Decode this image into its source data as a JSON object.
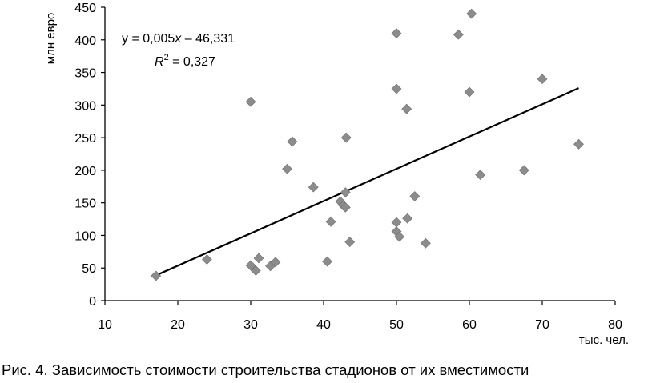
{
  "chart_data": {
    "type": "scatter",
    "title": "",
    "xlabel": "тыс. чел.",
    "ylabel": "млн евро",
    "xlim": [
      10,
      80
    ],
    "ylim": [
      0,
      450
    ],
    "x_ticks": [
      "10",
      "20",
      "30",
      "40",
      "50",
      "60",
      "70",
      "80"
    ],
    "y_ticks": [
      "0",
      "50",
      "100",
      "150",
      "200",
      "250",
      "300",
      "350",
      "400",
      "450"
    ],
    "grid": false,
    "legend": "none",
    "marker": "diamond",
    "marker_color": "#8c8c8c",
    "trendline": {
      "slope": 0.005,
      "intercept": -46.331,
      "x_range": [
        17,
        75
      ],
      "y_range": [
        38.7,
        326.0
      ],
      "equation_prefix": "y  = 0,005",
      "equation_var": "x",
      "equation_suffix": "  – 46,331",
      "r2_prefix": "R",
      "r2_sup": "2",
      "r2_suffix": " = 0,327"
    },
    "points": [
      {
        "x": 17.0,
        "y": 38
      },
      {
        "x": 24.0,
        "y": 63
      },
      {
        "x": 30.0,
        "y": 305
      },
      {
        "x": 30.0,
        "y": 54
      },
      {
        "x": 30.7,
        "y": 46
      },
      {
        "x": 31.1,
        "y": 65
      },
      {
        "x": 32.7,
        "y": 53
      },
      {
        "x": 33.4,
        "y": 59
      },
      {
        "x": 35.0,
        "y": 202
      },
      {
        "x": 35.7,
        "y": 244
      },
      {
        "x": 38.6,
        "y": 174
      },
      {
        "x": 40.5,
        "y": 60
      },
      {
        "x": 41.0,
        "y": 121
      },
      {
        "x": 42.3,
        "y": 152
      },
      {
        "x": 42.7,
        "y": 146
      },
      {
        "x": 43.0,
        "y": 143
      },
      {
        "x": 43.0,
        "y": 166
      },
      {
        "x": 43.1,
        "y": 250
      },
      {
        "x": 43.6,
        "y": 90
      },
      {
        "x": 50.0,
        "y": 410
      },
      {
        "x": 50.0,
        "y": 325
      },
      {
        "x": 50.0,
        "y": 120
      },
      {
        "x": 50.0,
        "y": 106
      },
      {
        "x": 50.4,
        "y": 98
      },
      {
        "x": 51.4,
        "y": 294
      },
      {
        "x": 51.5,
        "y": 126
      },
      {
        "x": 52.5,
        "y": 160
      },
      {
        "x": 54.0,
        "y": 88
      },
      {
        "x": 58.5,
        "y": 408
      },
      {
        "x": 60.0,
        "y": 320
      },
      {
        "x": 60.3,
        "y": 440
      },
      {
        "x": 61.5,
        "y": 193
      },
      {
        "x": 67.5,
        "y": 200
      },
      {
        "x": 70.0,
        "y": 340
      },
      {
        "x": 75.0,
        "y": 240
      }
    ]
  },
  "caption": "Рис. 4. Зависимость стоимости строительства стадионов от их вместимости"
}
